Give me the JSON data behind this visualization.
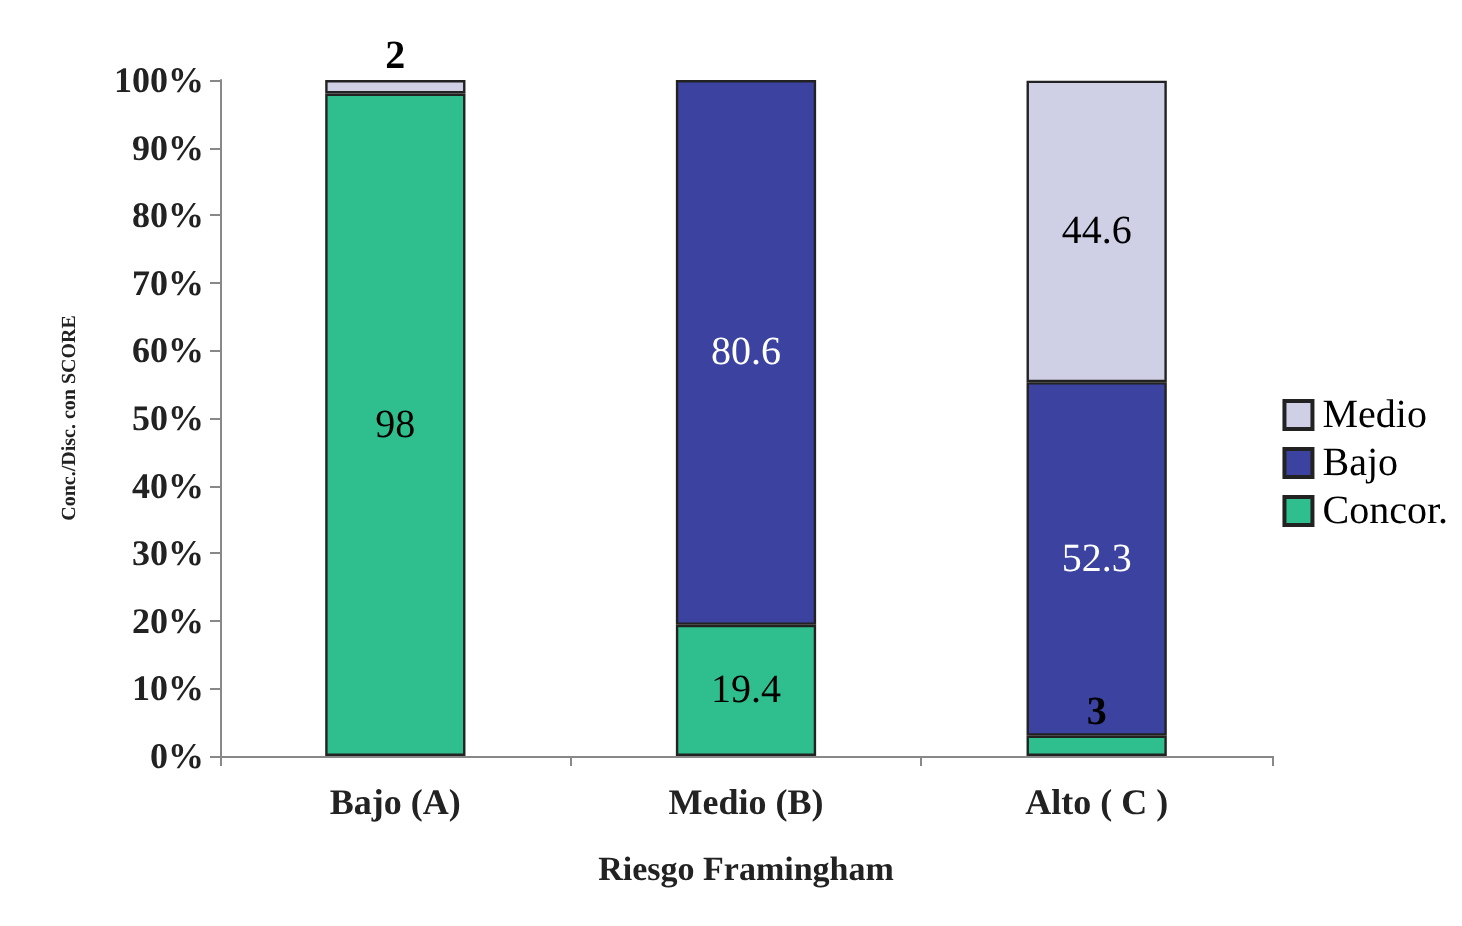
{
  "chart_data": {
    "type": "bar",
    "stacked": true,
    "xlabel": "Riesgo Framingham",
    "ylabel": "Conc./Disc. con SCORE",
    "categories": [
      "Bajo (A)",
      "Medio (B)",
      "Alto ( C )"
    ],
    "series": [
      {
        "name": "Concor.",
        "color": "#2fbf8f",
        "values": [
          98,
          19.4,
          3
        ],
        "value_labels": [
          "98",
          "19.4",
          "3"
        ]
      },
      {
        "name": "Bajo",
        "color": "#3b429f",
        "values": [
          null,
          80.6,
          52.3
        ],
        "value_labels": [
          null,
          "80.6",
          "52.3"
        ]
      },
      {
        "name": "Medio",
        "color": "#cfcfe6",
        "values": [
          2,
          null,
          44.6
        ],
        "value_labels": [
          "2",
          null,
          "44.6"
        ]
      }
    ],
    "ylim": [
      0,
      100
    ],
    "yticks": [
      {
        "value": 0,
        "label": "0%"
      },
      {
        "value": 10,
        "label": "10%"
      },
      {
        "value": 20,
        "label": "20%"
      },
      {
        "value": 30,
        "label": "30%"
      },
      {
        "value": 40,
        "label": "40%"
      },
      {
        "value": 50,
        "label": "50%"
      },
      {
        "value": 60,
        "label": "60%"
      },
      {
        "value": 70,
        "label": "70%"
      },
      {
        "value": 80,
        "label": "80%"
      },
      {
        "value": 90,
        "label": "90%"
      },
      {
        "value": 100,
        "label": "100%"
      }
    ],
    "grid": false,
    "legend": "right"
  }
}
